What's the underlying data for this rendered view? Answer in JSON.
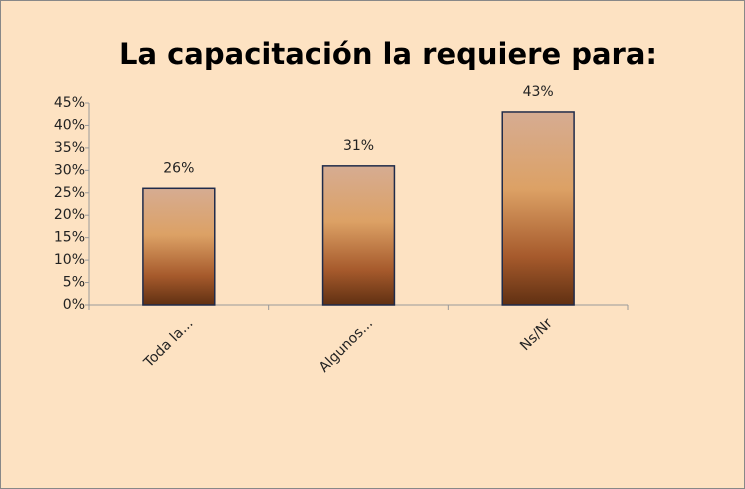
{
  "chart_data": {
    "type": "bar",
    "title": "La capacitación la requiere para:",
    "categories": [
      "Toda la...",
      "Algunos...",
      "Ns/Nr"
    ],
    "values": [
      26,
      31,
      43
    ],
    "value_labels": [
      "26%",
      "31%",
      "43%"
    ],
    "ylim": [
      0,
      45
    ],
    "yticks": [
      {
        "value": 0,
        "label": "0%"
      },
      {
        "value": 5,
        "label": "5%"
      },
      {
        "value": 10,
        "label": "10%"
      },
      {
        "value": 15,
        "label": "15%"
      },
      {
        "value": 20,
        "label": "20%"
      },
      {
        "value": 25,
        "label": "25%"
      },
      {
        "value": 30,
        "label": "30%"
      },
      {
        "value": 35,
        "label": "35%"
      },
      {
        "value": 40,
        "label": "40%"
      },
      {
        "value": 45,
        "label": "45%"
      }
    ],
    "grid": false
  }
}
